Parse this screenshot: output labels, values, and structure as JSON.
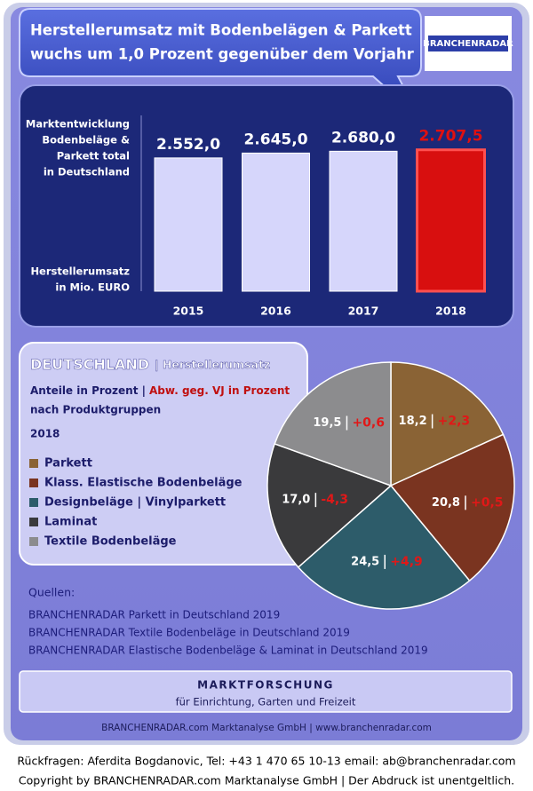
{
  "headline": [
    "Herstellerumsatz mit  Bodenbelägen & Parkett",
    "wuchs um 1,0 Prozent gegenüber dem Vorjahr"
  ],
  "logo": "BRANCHENRADAR",
  "chart_data": [
    {
      "type": "bar",
      "label_top": [
        "Marktentwicklung",
        "Bodenbeläge &",
        "Parkett total",
        "in Deutschland"
      ],
      "label_bottom": [
        "Herstellerumsatz",
        "in Mio. EURO"
      ],
      "categories": [
        "2015",
        "2016",
        "2017",
        "2018"
      ],
      "values": [
        2552.0,
        2645.0,
        2680.0,
        2707.5
      ],
      "value_labels": [
        "2.552,0",
        "2.645,0",
        "2.680,0",
        "2.707,5"
      ],
      "colors": [
        "#d6d6fb",
        "#d6d6fb",
        "#d6d6fb",
        "#d80f0f"
      ],
      "value_label_colors": [
        "#ffffff",
        "#ffffff",
        "#ffffff",
        "#e01010"
      ],
      "ylim": [
        0,
        3400
      ]
    },
    {
      "type": "pie",
      "title": [
        "DEUTSCHLAND",
        "| Herstellerumsatz"
      ],
      "subtitle": [
        "Anteile in Prozent |",
        "Abw. geg. VJ in Prozent"
      ],
      "subtitle2": "nach Produktgruppen",
      "year": "2018",
      "categories": [
        "Parkett",
        "Klass. Elastische Bodenbeläge",
        "Designbeläge | Vinylparkett",
        "Laminat",
        "Textile Bodenbeläge"
      ],
      "values": [
        18.2,
        20.8,
        24.5,
        17.0,
        19.5
      ],
      "value_labels": [
        "18,2",
        "20,8",
        "24,5",
        "17,0",
        "19,5"
      ],
      "changes": [
        2.3,
        0.5,
        4.9,
        -4.3,
        0.6
      ],
      "change_labels": [
        "+2,3",
        "+0,5",
        "+4,9",
        "-4,3",
        "+0,6"
      ],
      "colors": [
        "#8a6335",
        "#7a3420",
        "#2d5c6a",
        "#3a3a3c",
        "#8c8c8e"
      ]
    }
  ],
  "sources": {
    "title": "Quellen:",
    "items": [
      "BRANCHENRADAR Parkett in Deutschland 2019",
      "BRANCHENRADAR Textile Bodenbeläge in Deutschland 2019",
      "BRANCHENRADAR Elastische Bodenbeläge & Laminat in Deutschland 2019"
    ]
  },
  "footer_box": [
    "MARKTFORSCHUNG",
    "für Einrichtung, Garten und Freizeit"
  ],
  "footer_line": "BRANCHENRADAR.com Marktanalyse GmbH | www.branchenradar.com",
  "contact": [
    "Rückfragen: Aferdita Bogdanovic, Tel: +43 1 470 65 10-13 email: ab@branchenradar.com",
    "Copyright by BRANCHENRADAR.com  Marktanalyse GmbH | Der Abdruck ist unentgeltlich."
  ]
}
